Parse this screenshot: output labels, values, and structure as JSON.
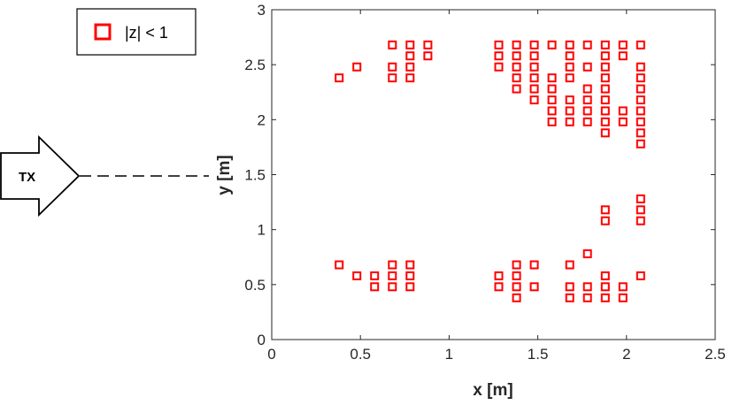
{
  "chart_data": {
    "type": "scatter",
    "xlabel": "x [m]",
    "ylabel": "y [m]",
    "xlim": [
      0,
      2.5
    ],
    "ylim": [
      0,
      3
    ],
    "xticks": [
      "0",
      "0.5",
      "1",
      "1.5",
      "2",
      "2.5"
    ],
    "yticks": [
      "0",
      "0.5",
      "1",
      "1.5",
      "2",
      "2.5",
      "3"
    ],
    "grid": false,
    "legend": {
      "placement": "top-left-outside",
      "entries": [
        {
          "label": "|z| < 1",
          "marker": "square",
          "color": "#ff0000"
        }
      ]
    },
    "series": [
      {
        "name": "|z| < 1",
        "color": "#ff0000",
        "marker": "square",
        "points": [
          [
            0.38,
            2.38
          ],
          [
            0.48,
            2.48
          ],
          [
            0.68,
            2.68
          ],
          [
            0.68,
            2.48
          ],
          [
            0.68,
            2.38
          ],
          [
            0.78,
            2.68
          ],
          [
            0.78,
            2.58
          ],
          [
            0.78,
            2.48
          ],
          [
            0.78,
            2.38
          ],
          [
            0.88,
            2.68
          ],
          [
            0.88,
            2.58
          ],
          [
            1.28,
            2.68
          ],
          [
            1.28,
            2.58
          ],
          [
            1.28,
            2.48
          ],
          [
            1.38,
            2.68
          ],
          [
            1.38,
            2.58
          ],
          [
            1.38,
            2.48
          ],
          [
            1.38,
            2.38
          ],
          [
            1.38,
            2.28
          ],
          [
            1.48,
            2.68
          ],
          [
            1.48,
            2.58
          ],
          [
            1.48,
            2.48
          ],
          [
            1.48,
            2.38
          ],
          [
            1.48,
            2.28
          ],
          [
            1.48,
            2.18
          ],
          [
            1.58,
            2.68
          ],
          [
            1.58,
            2.38
          ],
          [
            1.58,
            2.28
          ],
          [
            1.58,
            2.18
          ],
          [
            1.58,
            2.08
          ],
          [
            1.58,
            1.98
          ],
          [
            1.68,
            2.68
          ],
          [
            1.68,
            2.58
          ],
          [
            1.68,
            2.48
          ],
          [
            1.68,
            2.38
          ],
          [
            1.68,
            2.18
          ],
          [
            1.68,
            2.08
          ],
          [
            1.68,
            1.98
          ],
          [
            1.78,
            2.68
          ],
          [
            1.78,
            2.48
          ],
          [
            1.78,
            2.28
          ],
          [
            1.78,
            2.18
          ],
          [
            1.78,
            2.08
          ],
          [
            1.78,
            1.98
          ],
          [
            1.88,
            2.68
          ],
          [
            1.88,
            2.58
          ],
          [
            1.88,
            2.48
          ],
          [
            1.88,
            2.38
          ],
          [
            1.88,
            2.28
          ],
          [
            1.88,
            2.18
          ],
          [
            1.88,
            2.08
          ],
          [
            1.88,
            1.98
          ],
          [
            1.88,
            1.88
          ],
          [
            1.98,
            2.68
          ],
          [
            1.98,
            2.58
          ],
          [
            1.98,
            2.08
          ],
          [
            1.98,
            1.98
          ],
          [
            2.08,
            2.68
          ],
          [
            2.08,
            2.48
          ],
          [
            2.08,
            2.38
          ],
          [
            2.08,
            2.28
          ],
          [
            2.08,
            2.18
          ],
          [
            2.08,
            2.08
          ],
          [
            2.08,
            1.98
          ],
          [
            2.08,
            1.88
          ],
          [
            2.08,
            1.78
          ],
          [
            1.88,
            1.18
          ],
          [
            1.88,
            1.08
          ],
          [
            2.08,
            1.28
          ],
          [
            2.08,
            1.18
          ],
          [
            2.08,
            1.08
          ],
          [
            0.38,
            0.68
          ],
          [
            0.48,
            0.58
          ],
          [
            0.58,
            0.58
          ],
          [
            0.58,
            0.48
          ],
          [
            0.68,
            0.68
          ],
          [
            0.68,
            0.58
          ],
          [
            0.68,
            0.48
          ],
          [
            0.78,
            0.68
          ],
          [
            0.78,
            0.58
          ],
          [
            0.78,
            0.48
          ],
          [
            1.28,
            0.58
          ],
          [
            1.28,
            0.48
          ],
          [
            1.38,
            0.68
          ],
          [
            1.38,
            0.58
          ],
          [
            1.38,
            0.48
          ],
          [
            1.38,
            0.38
          ],
          [
            1.48,
            0.68
          ],
          [
            1.48,
            0.48
          ],
          [
            1.68,
            0.68
          ],
          [
            1.68,
            0.48
          ],
          [
            1.68,
            0.38
          ],
          [
            1.78,
            0.78
          ],
          [
            1.78,
            0.48
          ],
          [
            1.78,
            0.38
          ],
          [
            1.88,
            0.58
          ],
          [
            1.88,
            0.48
          ],
          [
            1.88,
            0.38
          ],
          [
            1.98,
            0.48
          ],
          [
            1.98,
            0.38
          ],
          [
            2.08,
            0.58
          ]
        ]
      }
    ]
  },
  "legend_label": "|z| < 1",
  "transmitter": {
    "label": "TX"
  }
}
